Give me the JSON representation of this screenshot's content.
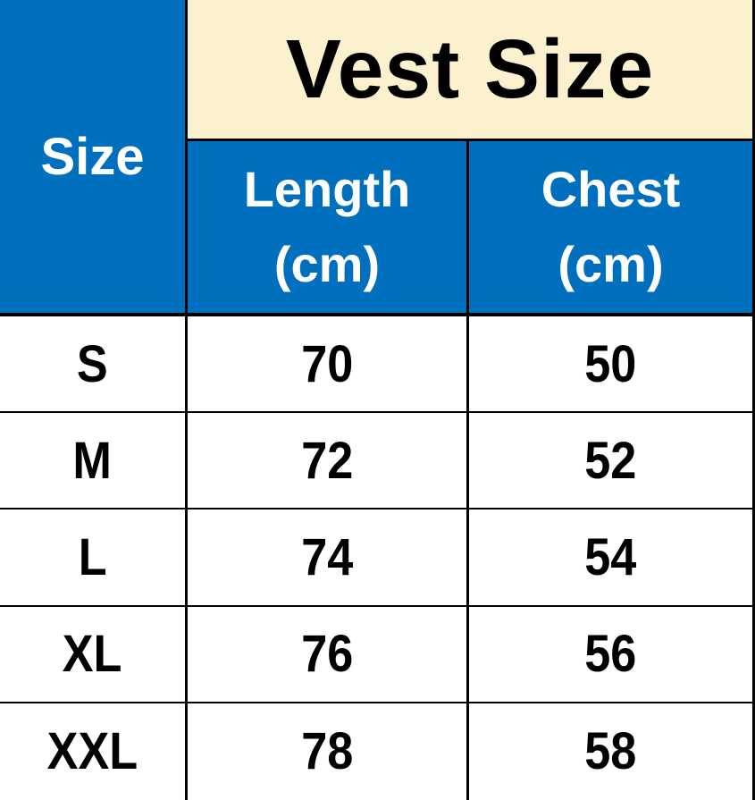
{
  "title": "Vest Size",
  "table": {
    "corner_header": "Size",
    "columns": [
      {
        "line1": "Length",
        "line2": "(cm)"
      },
      {
        "line1": "Chest",
        "line2": "(cm)"
      }
    ],
    "rows": [
      {
        "size": "S",
        "length": "70",
        "chest": "50"
      },
      {
        "size": "M",
        "length": "72",
        "chest": "52"
      },
      {
        "size": "L",
        "length": "74",
        "chest": "54"
      },
      {
        "size": "XL",
        "length": "76",
        "chest": "56"
      },
      {
        "size": "XXL",
        "length": "78",
        "chest": "58"
      }
    ]
  },
  "colors": {
    "blue": "#0070BE",
    "cream": "#FCF1CE",
    "border": "#000000",
    "ink": "#000000",
    "light": "#FFFFFF"
  },
  "chart_data": {
    "type": "table",
    "title": "Vest Size",
    "columns": [
      "Size",
      "Length (cm)",
      "Chest (cm)"
    ],
    "rows": [
      [
        "S",
        70,
        50
      ],
      [
        "M",
        72,
        52
      ],
      [
        "L",
        74,
        54
      ],
      [
        "XL",
        76,
        56
      ],
      [
        "XXL",
        78,
        58
      ]
    ]
  }
}
